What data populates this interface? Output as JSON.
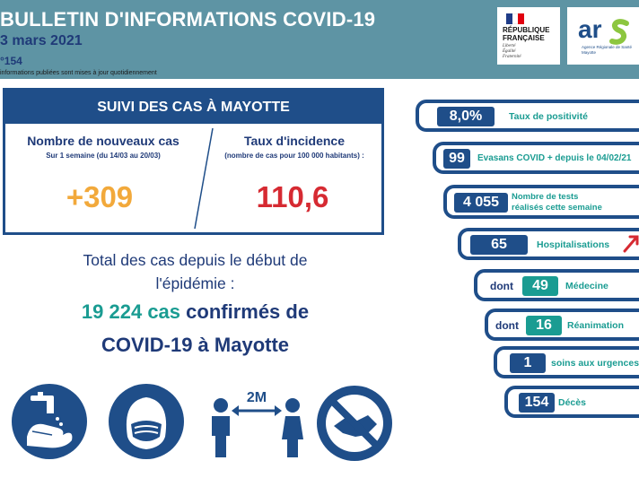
{
  "header": {
    "title": "BULLETIN D'INFORMATIONS COVID-19",
    "date": "3 mars 2021",
    "number": "°154",
    "note": "informations publiées sont mises à jour quotidiennement"
  },
  "logos": {
    "rf_line1": "RÉPUBLIQUE",
    "rf_line2": "FRANÇAISE",
    "rf_motto1": "Liberté",
    "rf_motto2": "Égalité",
    "rf_motto3": "Fraternité",
    "ars_small1": "Agence Régionale de Santé",
    "ars_small2": "Mayotte"
  },
  "suivi": {
    "title": "SUIVI DES CAS À MAYOTTE",
    "new_cases_title": "Nombre de nouveaux cas",
    "new_cases_sub": "Sur 1 semaine (du 14/03 au 20/03)",
    "new_cases_value": "+309",
    "incidence_title": "Taux d'incidence",
    "incidence_sub": "(nombre de cas pour 100 000 habitants) :",
    "incidence_value": "110,6"
  },
  "total": {
    "line1": "Total des cas depuis le début de",
    "line2": "l'épidémie :",
    "count": "19 224 cas",
    "confirmed": " confirmés de",
    "line4": "COVID-19 à Mayotte"
  },
  "stats": {
    "positivite_value": "8,0%",
    "positivite_label": "Taux de positivité",
    "evasans_value": "99",
    "evasans_label": "Evasans COVID + depuis le 04/02/21",
    "tests_value": "4 055",
    "tests_label1": "Nombre de tests",
    "tests_label2": "réalisés cette semaine",
    "hospit_value": "65",
    "hospit_label": "Hospitalisations",
    "dont_label": "dont",
    "medecine_value": "49",
    "medecine_label": "Médecine",
    "reanimation_value": "16",
    "reanimation_label": "Réanimation",
    "urgences_value": "1",
    "urgences_label": "soins aux urgences",
    "deces_value": "154",
    "deces_label": "Décès"
  },
  "icons": {
    "distance_label": "2M"
  },
  "colors": {
    "navy": "#1f4e89",
    "teal": "#1a9c92",
    "orange": "#f2a93b",
    "red": "#d62a32",
    "header": "#5e94a4"
  }
}
